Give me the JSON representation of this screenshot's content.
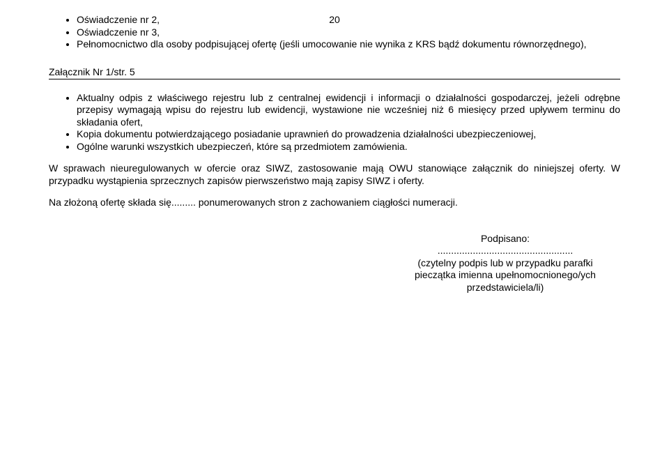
{
  "pageNumber": "20",
  "topList": {
    "items": [
      "Oświadczenie nr 2,",
      "Oświadczenie nr 3,"
    ],
    "longItem": "Pełnomocnictwo dla osoby podpisującej ofertę (jeśli umocowanie nie wynika z KRS bądź dokumentu równorzędnego),"
  },
  "sectionTitle": "Załącznik Nr 1/str. 5",
  "mainList": {
    "item1": "Aktualny odpis z właściwego rejestru lub z centralnej ewidencji i informacji o działalności gospodarczej, jeżeli odrębne przepisy wymagają wpisu do rejestru lub ewidencji, wystawione nie wcześniej niż 6 miesięcy przed upływem terminu do składania ofert,",
    "item2": "Kopia dokumentu potwierdzającego posiadanie uprawnień do prowadzenia działalności ubezpieczeniowej,",
    "item3": "Ogólne warunki wszystkich ubezpieczeń, które są przedmiotem zamówienia."
  },
  "para1": "W sprawach nieuregulowanych w ofercie oraz SIWZ, zastosowanie mają OWU stanowiące załącznik do niniejszej oferty. W przypadku wystąpienia sprzecznych zapisów pierwszeństwo mają zapisy SIWZ i oferty.",
  "para2": "Na złożoną ofertę składa się......... ponumerowanych stron z zachowaniem ciągłości numeracji.",
  "signature": {
    "label": "Podpisano:",
    "dots": "..................................................",
    "line1": "(czytelny podpis lub w przypadku parafki",
    "line2": "pieczątka imienna upełnomocnionego/ych",
    "line3": "przedstawiciela/li)"
  },
  "colors": {
    "text": "#000000",
    "background": "#ffffff",
    "divider": "#000000"
  },
  "fonts": {
    "family": "Verdana, Tahoma, sans-serif",
    "body_size": 14,
    "line_height": 1.25
  }
}
